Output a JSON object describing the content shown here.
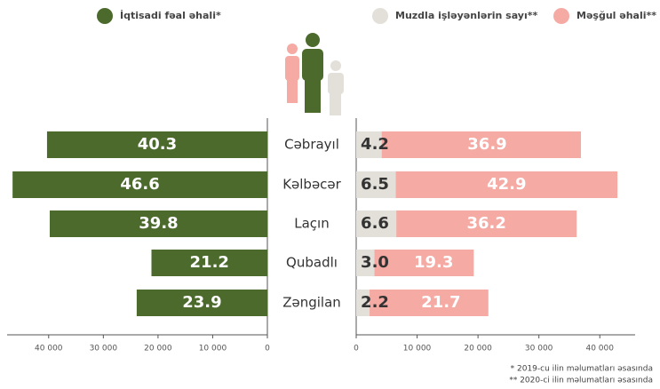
{
  "chart_data": {
    "type": "butterfly",
    "categories": [
      "Cəbrayıl",
      "Kəlbəcər",
      "Laçın",
      "Qubadlı",
      "Zəngilan"
    ],
    "series": [
      {
        "name": "İqtisadi fəal əhali*",
        "color": "#4b6a2c",
        "axis": "x",
        "values": [
          40300,
          46600,
          39800,
          21200,
          23900
        ],
        "value_labels": [
          "40.3",
          "46.6",
          "39.8",
          "21.2",
          "23.9"
        ]
      },
      {
        "name": "Muzdla işləyənlərin sayı**",
        "color": "#e3dfd9",
        "axis": "x2",
        "values": [
          4200,
          6500,
          6600,
          3000,
          2200
        ],
        "value_labels": [
          "4.2",
          "6.5",
          "6.6",
          "3.0",
          "2.2"
        ]
      },
      {
        "name": "Məşğul əhali**",
        "color": "#f5aaa4",
        "axis": "x2",
        "values": [
          36900,
          42900,
          36200,
          19300,
          21700
        ],
        "value_labels": [
          "36.9",
          "42.9",
          "36.2",
          "19.3",
          "21.7"
        ]
      }
    ],
    "xlim": [
      0,
      47600
    ],
    "xticks": [
      {
        "value": 40000,
        "label": "40 000"
      },
      {
        "value": 30000,
        "label": "30 000"
      },
      {
        "value": 20000,
        "label": "20 000"
      },
      {
        "value": 10000,
        "label": "10 000"
      },
      0
    ],
    "x2lim": [
      0,
      45800
    ],
    "x2ticks": [
      0,
      {
        "value": 10000,
        "label": "10 000"
      },
      {
        "value": 20000,
        "label": "20 000"
      },
      {
        "value": 30000,
        "label": "30 000"
      },
      {
        "value": 40000,
        "label": "40 000"
      }
    ],
    "notes": [
      "* 2019-cu ilin məlumatları əsasında",
      "** 2020-ci ilin məlumatları əsasında"
    ]
  }
}
